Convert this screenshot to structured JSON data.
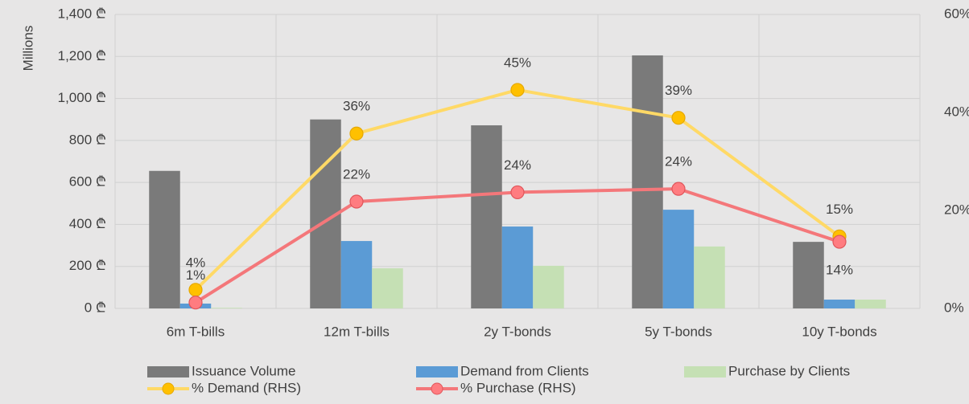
{
  "chart_data": {
    "type": "bar-line",
    "y_label": "Millions",
    "categories": [
      "6m T-bills",
      "12m T-bills",
      "2y T-bonds",
      "5y T-bonds",
      "10y T-bonds"
    ],
    "series": [
      {
        "name": "Issuance Volume",
        "type": "bar",
        "color": "#7a7a7a",
        "values": [
          655,
          900,
          872,
          1205,
          317
        ]
      },
      {
        "name": "Demand from Clients",
        "type": "bar",
        "color": "#5b9bd5",
        "values": [
          23,
          321,
          390,
          470,
          42
        ]
      },
      {
        "name": "Purchase by Clients",
        "type": "bar",
        "color": "#c5e0b4",
        "values": [
          3,
          191,
          203,
          295,
          42
        ]
      },
      {
        "name": "% Demand (RHS)",
        "type": "line",
        "axis": "y2",
        "color": "#ffd966",
        "marker_color": "#ffc000",
        "values": [
          3.8,
          35.7,
          44.6,
          38.9,
          14.7
        ],
        "value_labels": [
          "4%",
          "36%",
          "45%",
          "39%",
          "15%"
        ]
      },
      {
        "name": "% Purchase (RHS)",
        "type": "line",
        "axis": "y2",
        "color": "#f4777a",
        "marker_color": "#ff7c80",
        "values": [
          1.2,
          21.8,
          23.7,
          24.4,
          13.6
        ],
        "value_labels": [
          "1%",
          "22%",
          "24%",
          "24%",
          "14%"
        ]
      }
    ],
    "ylim": [
      0,
      1400
    ],
    "yticks": [
      {
        "value": 0,
        "label": "0 ₾"
      },
      {
        "value": 200,
        "label": "200 ₾"
      },
      {
        "value": 400,
        "label": "400 ₾"
      },
      {
        "value": 600,
        "label": "600 ₾"
      },
      {
        "value": 800,
        "label": "800 ₾"
      },
      {
        "value": 1000,
        "label": "1,000 ₾"
      },
      {
        "value": 1200,
        "label": "1,200 ₾"
      },
      {
        "value": 1400,
        "label": "1,400 ₾"
      }
    ],
    "y2lim": [
      0,
      60
    ],
    "y2ticks": [
      {
        "value": 0,
        "label": "0%"
      },
      {
        "value": 20,
        "label": "20%"
      },
      {
        "value": 40,
        "label": "40%"
      },
      {
        "value": 60,
        "label": "60%"
      }
    ],
    "grid": true,
    "legend": "bottom"
  }
}
